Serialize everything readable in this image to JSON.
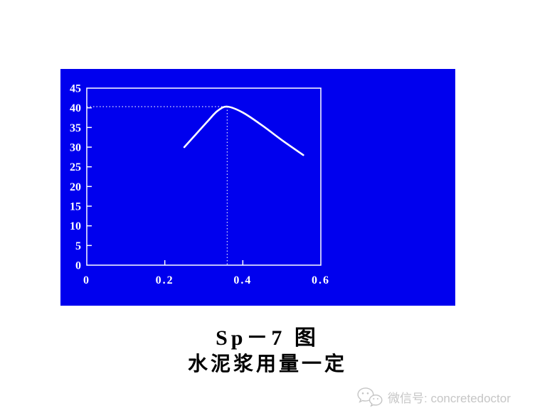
{
  "page": {
    "background": "#ffffff"
  },
  "panel": {
    "background": "#0000ee"
  },
  "chart_data": {
    "type": "line",
    "title": "",
    "xlabel": "",
    "ylabel": "",
    "xlim": [
      0,
      0.6
    ],
    "ylim": [
      0,
      45
    ],
    "x_ticks": [
      0,
      0.2,
      0.4,
      0.6
    ],
    "x_tick_labels": [
      "0",
      "0.2",
      "0.4",
      "0.6"
    ],
    "y_ticks": [
      0,
      5,
      10,
      15,
      20,
      25,
      30,
      35,
      40,
      45
    ],
    "y_tick_labels": [
      "0",
      "5",
      "10",
      "15",
      "20",
      "25",
      "30",
      "35",
      "40",
      "45"
    ],
    "grid": false,
    "legend": false,
    "axis_color": "#ffffff",
    "line_color": "#ffffff",
    "series": [
      {
        "name": "curve",
        "x": [
          0.25,
          0.28,
          0.31,
          0.335,
          0.36,
          0.4,
          0.45,
          0.5,
          0.555
        ],
        "y": [
          30,
          33.3,
          36.6,
          39.2,
          40.3,
          38.8,
          35.5,
          31.8,
          28
        ]
      }
    ],
    "guides": {
      "peak_x": 0.36,
      "peak_y": 40.3
    }
  },
  "caption": {
    "line1": "Sp－7 图",
    "line2": "水泥浆用量一定"
  },
  "watermark": {
    "icon": "wechat-icon",
    "text": "微信号: concretedoctor",
    "color": "#c6c6c6"
  }
}
